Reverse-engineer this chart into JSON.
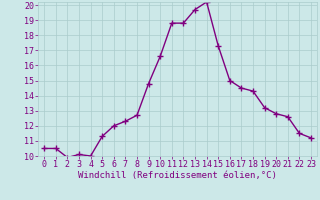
{
  "x": [
    0,
    1,
    2,
    3,
    4,
    5,
    6,
    7,
    8,
    9,
    10,
    11,
    12,
    13,
    14,
    15,
    16,
    17,
    18,
    19,
    20,
    21,
    22,
    23
  ],
  "y": [
    10.5,
    10.5,
    9.9,
    10.1,
    10.0,
    11.3,
    12.0,
    12.3,
    12.7,
    14.8,
    16.6,
    18.8,
    18.8,
    19.7,
    20.2,
    17.3,
    15.0,
    14.5,
    14.3,
    13.2,
    12.8,
    12.6,
    11.5,
    11.2
  ],
  "line_color": "#800080",
  "marker": "+",
  "marker_size": 4,
  "linewidth": 1.0,
  "bg_color": "#cce8e8",
  "grid_color": "#aacccc",
  "xlabel": "Windchill (Refroidissement éolien,°C)",
  "xlabel_fontsize": 6.5,
  "tick_fontsize": 6.0,
  "ylim": [
    10,
    20
  ],
  "xlim": [
    -0.5,
    23.5
  ],
  "yticks": [
    10,
    11,
    12,
    13,
    14,
    15,
    16,
    17,
    18,
    19,
    20
  ],
  "xticks": [
    0,
    1,
    2,
    3,
    4,
    5,
    6,
    7,
    8,
    9,
    10,
    11,
    12,
    13,
    14,
    15,
    16,
    17,
    18,
    19,
    20,
    21,
    22,
    23
  ]
}
